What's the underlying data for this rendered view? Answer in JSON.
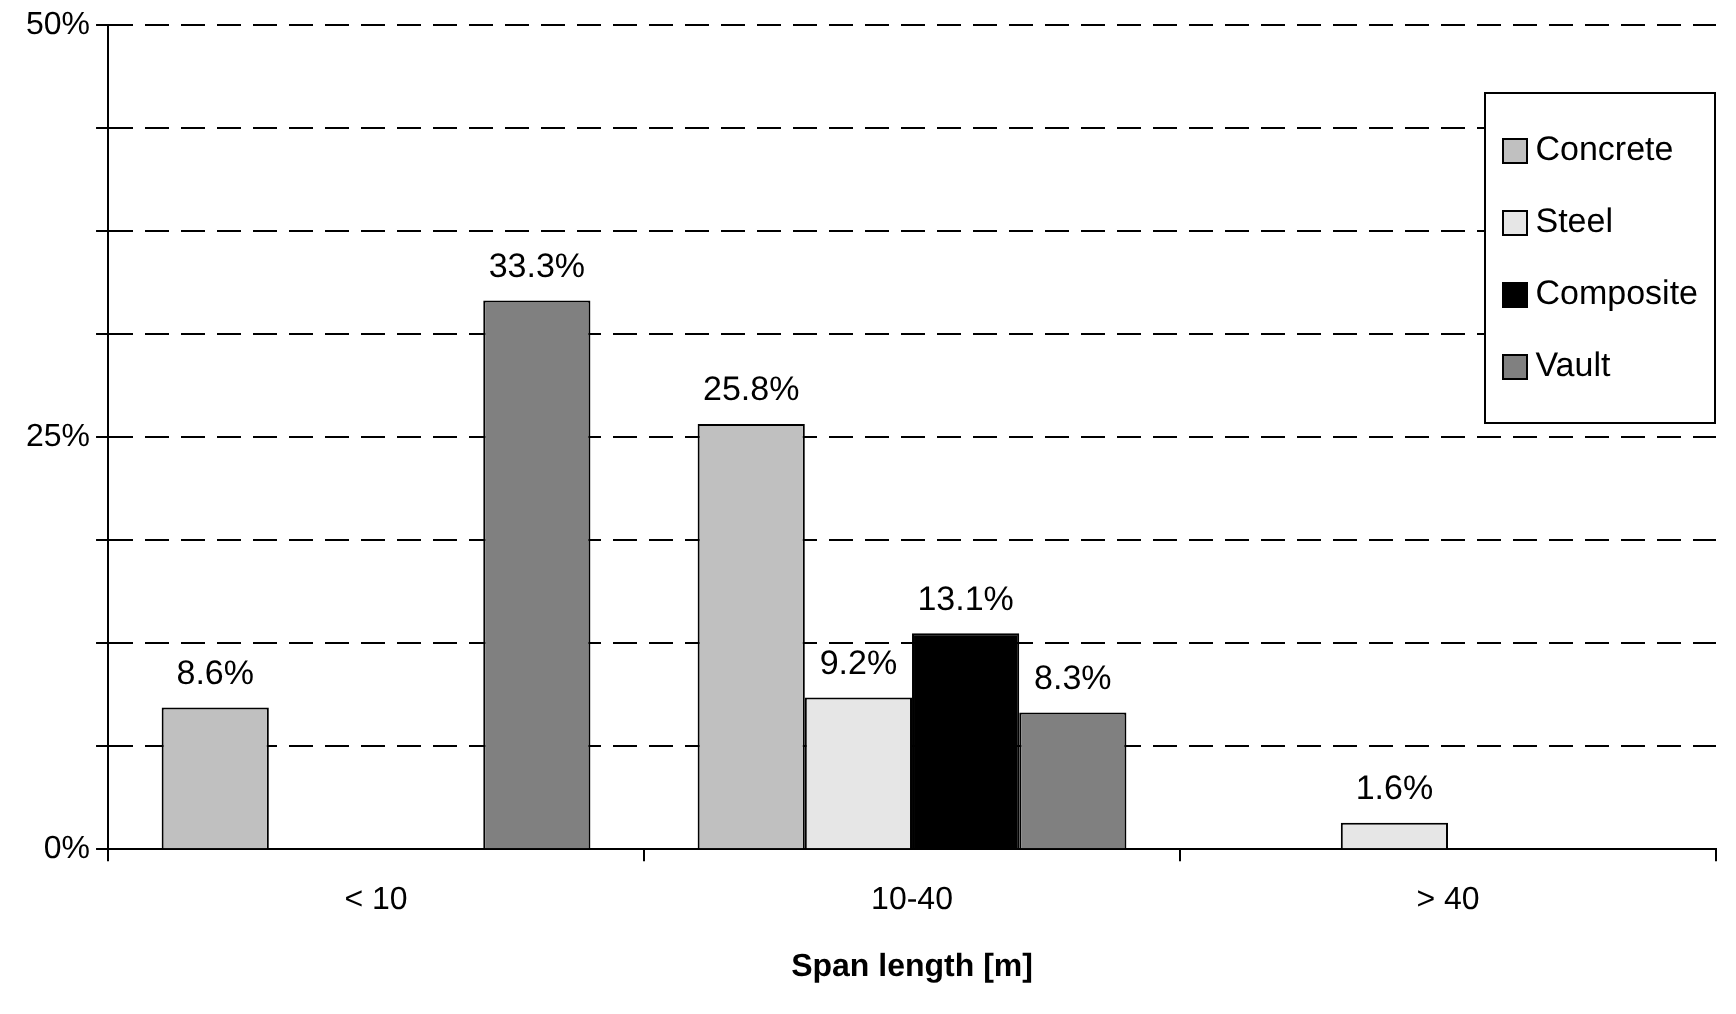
{
  "chart_data": {
    "type": "bar",
    "xlabel": "Span length [m]",
    "categories": [
      "< 10",
      "10-40",
      "> 40"
    ],
    "series": [
      {
        "name": "Concrete",
        "color": "#c0c0c0",
        "values": [
          8.6,
          25.8,
          null
        ],
        "value_labels": [
          "8.6%",
          "25.8%",
          null
        ]
      },
      {
        "name": "Steel",
        "color": "#e6e6e6",
        "values": [
          null,
          9.2,
          1.6
        ],
        "value_labels": [
          null,
          "9.2%",
          "1.6%"
        ]
      },
      {
        "name": "Composite",
        "color": "#000000",
        "values": [
          null,
          13.1,
          null
        ],
        "value_labels": [
          null,
          "13.1%",
          null
        ]
      },
      {
        "name": "Vault",
        "color": "#808080",
        "values": [
          33.3,
          8.3,
          null
        ],
        "value_labels": [
          "33.3%",
          "8.3%",
          null
        ]
      }
    ],
    "ylim": [
      0,
      50
    ],
    "yticks": [
      {
        "value": 0,
        "label": "0%"
      },
      {
        "value": 6.25,
        "label": null
      },
      {
        "value": 12.5,
        "label": null
      },
      {
        "value": 18.75,
        "label": null
      },
      {
        "value": 25,
        "label": "25%"
      },
      {
        "value": 31.25,
        "label": null
      },
      {
        "value": 37.5,
        "label": null
      },
      {
        "value": 43.75,
        "label": null
      },
      {
        "value": 50,
        "label": "50%"
      }
    ],
    "grid": "y",
    "line_style": "dashed",
    "legend": "top right"
  }
}
